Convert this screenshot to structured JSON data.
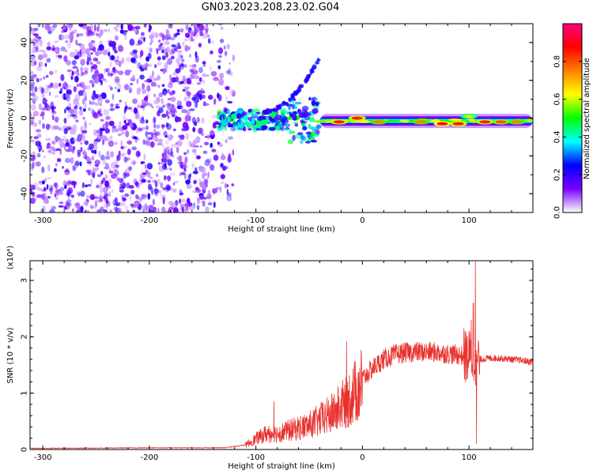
{
  "title": "GN03.2023.208.23.02.G04",
  "chart_data": [
    {
      "type": "heatmap",
      "xlabel": "Height of straight line (km)",
      "ylabel": "Frequency (Hz)",
      "xlim": [
        -312,
        160
      ],
      "ylim": [
        -50,
        50
      ],
      "xticks": [
        -300,
        -200,
        -100,
        0,
        100
      ],
      "yticks": [
        -40,
        -20,
        0,
        20,
        40
      ],
      "colorbar": {
        "label": "Normalized spectral amplitude",
        "range": [
          0,
          1
        ],
        "ticks": [
          0.0,
          0.2,
          0.4,
          0.6,
          0.8
        ],
        "tick_labels": [
          "0.0",
          "0.2",
          "0.4",
          "0.6",
          "0.8"
        ],
        "colormap": [
          "#ffffff",
          "#7a00ff",
          "#0000ff",
          "#00ffff",
          "#00ff00",
          "#ffff00",
          "#ff8000",
          "#ff0000",
          "#ff0080"
        ]
      },
      "regions": [
        {
          "x_range": [
            -312,
            -120
          ],
          "freq_range": [
            -50,
            50
          ],
          "amplitude": 0.25,
          "pattern": "broadband-noise"
        },
        {
          "x_range": [
            -135,
            -40
          ],
          "freq_range": [
            -15,
            10
          ],
          "amplitude": 0.45,
          "pattern": "scattered-blobs"
        },
        {
          "x_range": [
            -95,
            -40
          ],
          "freq_start": 3,
          "freq_end": 32,
          "amplitude": 0.22,
          "pattern": "rising-streak"
        },
        {
          "x_range": [
            -40,
            160
          ],
          "freq_center": -1.5,
          "amplitude": 0.5,
          "pattern": "narrow-band"
        }
      ],
      "hotspots": [
        {
          "x": -22,
          "freq": -2,
          "amplitude": 0.85
        },
        {
          "x": -5,
          "freq": 0,
          "amplitude": 0.85
        },
        {
          "x": 15,
          "freq": -2,
          "amplitude": 0.75
        },
        {
          "x": 55,
          "freq": -2,
          "amplitude": 0.75
        },
        {
          "x": 75,
          "freq": -3,
          "amplitude": 0.9
        },
        {
          "x": 90,
          "freq": -3,
          "amplitude": 0.85
        },
        {
          "x": 100,
          "freq": 1,
          "amplitude": 0.6
        },
        {
          "x": 115,
          "freq": -2,
          "amplitude": 0.85
        },
        {
          "x": 130,
          "freq": -2,
          "amplitude": 0.8
        },
        {
          "x": 145,
          "freq": -2,
          "amplitude": 0.75
        }
      ]
    },
    {
      "type": "line",
      "xlabel": "Height of straight line (km)",
      "ylabel": "SNR (10 * v/v)",
      "y_multiplier": "(x10⁴)",
      "line_color": "#e8322e",
      "xlim": [
        -312,
        160
      ],
      "ylim": [
        0,
        3.35
      ],
      "xticks": [
        -300,
        -200,
        -100,
        0,
        100
      ],
      "yticks": [
        0,
        1,
        2,
        3
      ],
      "envelope_x": [
        -312,
        -200,
        -130,
        -110,
        -100,
        -90,
        -80,
        -70,
        -60,
        -50,
        -40,
        -30,
        -20,
        -10,
        0,
        10,
        20,
        30,
        40,
        50,
        60,
        70,
        80,
        90,
        95,
        100,
        105,
        110,
        120,
        130,
        140,
        150,
        160
      ],
      "envelope_y": [
        0.02,
        0.03,
        0.03,
        0.08,
        0.2,
        0.3,
        0.3,
        0.35,
        0.4,
        0.45,
        0.55,
        0.65,
        0.8,
        1.0,
        1.25,
        1.45,
        1.6,
        1.68,
        1.72,
        1.73,
        1.73,
        1.72,
        1.7,
        1.68,
        1.66,
        1.65,
        1.63,
        1.6,
        1.62,
        1.62,
        1.6,
        1.58,
        1.55
      ],
      "spikes": [
        {
          "x": -15,
          "y": 1.92
        },
        {
          "x": -83,
          "y": 0.85
        },
        {
          "x": 106,
          "y": 3.35
        },
        {
          "x": 104,
          "y": 2.6
        },
        {
          "x": 102,
          "y": 2.3
        },
        {
          "x": 107,
          "y": 0.1
        }
      ]
    }
  ]
}
